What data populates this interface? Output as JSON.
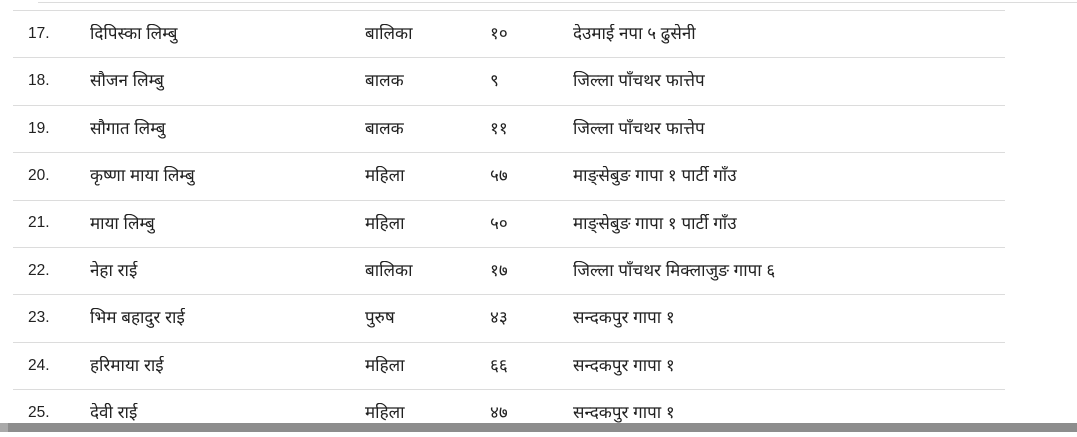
{
  "colors": {
    "divider": "#dcdcdc",
    "text": "#212121",
    "scroll_track": "#a9a9a9",
    "scroll_thumb": "#8d8d8d",
    "background": "#ffffff"
  },
  "table": {
    "rows": [
      {
        "serial": "17.",
        "name": "दिपिस्का लिम्बु",
        "gender": "बालिका",
        "age": "१०",
        "address": "देउमाई नपा ५ ढुसेनी"
      },
      {
        "serial": "18.",
        "name": "सौजन लिम्बु",
        "gender": "बालक",
        "age": "९",
        "address": "जिल्ला पाँचथर फात्तेप"
      },
      {
        "serial": "19.",
        "name": "सौगात लिम्बु",
        "gender": "बालक",
        "age": "११",
        "address": "जिल्ला पाँचथर फात्तेप"
      },
      {
        "serial": "20.",
        "name": "कृष्णा माया लिम्बु",
        "gender": "महिला",
        "age": "५७",
        "address": "माङ्सेबुङ गापा १ पार्टी गाँउ"
      },
      {
        "serial": "21.",
        "name": "माया लिम्बु",
        "gender": "महिला",
        "age": "५०",
        "address": "माङ्सेबुङ गापा १ पार्टी गाँउ"
      },
      {
        "serial": "22.",
        "name": "नेहा राई",
        "gender": "बालिका",
        "age": "१७",
        "address": "जिल्ला पाँचथर मिक्लाजुङ गापा ६"
      },
      {
        "serial": "23.",
        "name": "भिम बहादुर राई",
        "gender": "पुरुष",
        "age": "४३",
        "address": "सन्दकपुर गापा १"
      },
      {
        "serial": "24.",
        "name": "हरिमाया राई",
        "gender": "महिला",
        "age": "६६",
        "address": "सन्दकपुर गापा १"
      },
      {
        "serial": "25.",
        "name": "देवी राई",
        "gender": "महिला",
        "age": "४७",
        "address": "सन्दकपुर गापा १"
      }
    ]
  }
}
